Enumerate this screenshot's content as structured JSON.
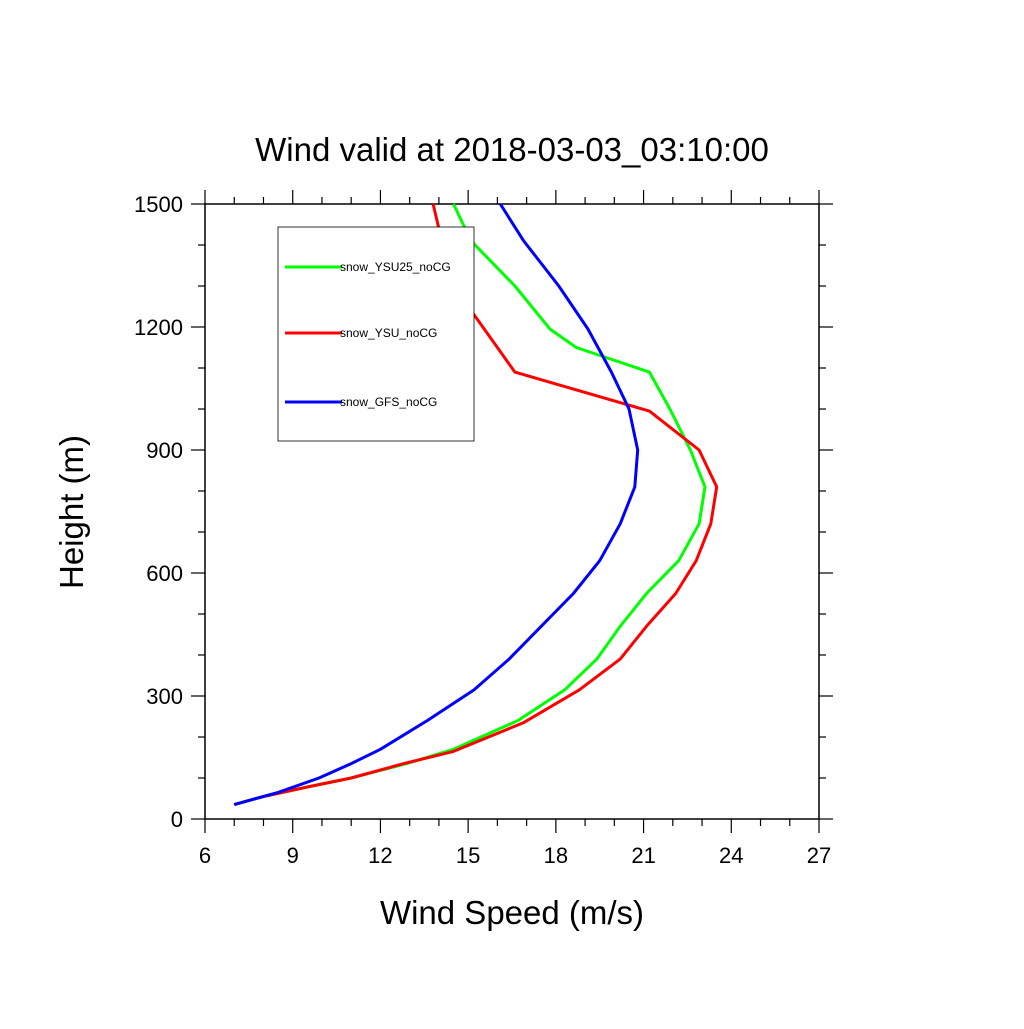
{
  "chart_data": {
    "type": "line",
    "title": "Wind valid at 2018-03-03_03:10:00",
    "xlabel": "Wind Speed (m/s)",
    "ylabel": "Height (m)",
    "xlim": [
      6,
      27
    ],
    "ylim": [
      0,
      1500
    ],
    "xticks": [
      6,
      9,
      12,
      15,
      18,
      21,
      24,
      27
    ],
    "yticks": [
      0,
      300,
      600,
      900,
      1200,
      1500
    ],
    "xtick_labels": [
      "6",
      "9",
      "12",
      "15",
      "18",
      "21",
      "24",
      "27"
    ],
    "ytick_labels": [
      "0",
      "300",
      "600",
      "900",
      "1200",
      "1500"
    ],
    "grid": false,
    "legend_position": "top-left",
    "series": [
      {
        "name": "snow_YSU25_noCG",
        "color": "#00ff00",
        "x": [
          7.0,
          8.0,
          9.5,
          11.0,
          12.9,
          14.5,
          16.7,
          18.3,
          19.4,
          20.2,
          21.1,
          22.2,
          22.9,
          23.1,
          22.6,
          21.9,
          21.2,
          18.7,
          17.8,
          16.6,
          15.1,
          14.5
        ],
        "y": [
          35,
          55,
          78,
          100,
          135,
          170,
          240,
          315,
          390,
          470,
          550,
          630,
          720,
          810,
          900,
          1000,
          1090,
          1150,
          1195,
          1300,
          1410,
          1500
        ]
      },
      {
        "name": "snow_YSU_noCG",
        "color": "#ff0000",
        "x": [
          7.0,
          8.0,
          9.5,
          11.0,
          12.8,
          14.5,
          16.9,
          18.8,
          20.2,
          21.1,
          22.1,
          22.8,
          23.3,
          23.5,
          22.9,
          21.2,
          16.6,
          15.5,
          14.5,
          14.1,
          13.8
        ],
        "y": [
          35,
          55,
          78,
          100,
          135,
          165,
          235,
          315,
          390,
          470,
          550,
          630,
          720,
          810,
          900,
          995,
          1090,
          1200,
          1300,
          1410,
          1500
        ]
      },
      {
        "name": "snow_GFS_noCG",
        "color": "#0000ff",
        "x": [
          7.0,
          8.5,
          9.9,
          11.0,
          12.0,
          13.6,
          15.2,
          16.4,
          17.5,
          18.6,
          19.5,
          20.2,
          20.7,
          20.8,
          20.5,
          19.9,
          19.1,
          18.1,
          16.9,
          16.1
        ],
        "y": [
          35,
          65,
          100,
          135,
          170,
          240,
          315,
          390,
          470,
          550,
          630,
          720,
          810,
          900,
          1000,
          1090,
          1195,
          1300,
          1410,
          1500
        ]
      }
    ]
  }
}
